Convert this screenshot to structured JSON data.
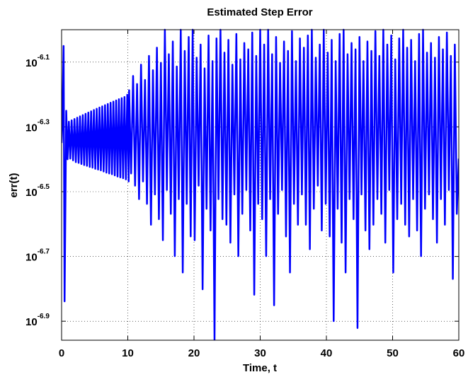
{
  "chart_data": {
    "type": "line",
    "title": "Estimated Step Error",
    "x_label": "Time, t",
    "y_label": "err(t)",
    "xlim": [
      0,
      60
    ],
    "xticks": [
      0,
      10,
      20,
      30,
      40,
      50,
      60
    ],
    "ylim": [
      1.1e-07,
      1e-06
    ],
    "yscale": "log",
    "yticks": [
      {
        "value": 1.259e-07,
        "label": "10",
        "exponent": "-6.9"
      },
      {
        "value": 1.995e-07,
        "label": "10",
        "exponent": "-6.7"
      },
      {
        "value": 3.162e-07,
        "label": "10",
        "exponent": "-6.5"
      },
      {
        "value": 5.012e-07,
        "label": "10",
        "exponent": "-6.3"
      },
      {
        "value": 7.943e-07,
        "label": "10",
        "exponent": "-6.1"
      }
    ],
    "grid": true,
    "x": [
      0,
      0.1,
      0.3,
      0.45,
      0.7,
      0.9,
      1.1,
      1.31,
      1.52,
      1.73,
      1.94,
      2.15,
      2.36,
      2.57,
      2.78,
      2.99,
      3.2,
      3.41,
      3.62,
      3.83,
      4.04,
      4.25,
      4.46,
      4.67,
      4.88,
      5.09,
      5.3,
      5.51,
      5.72,
      5.93,
      6.14,
      6.35,
      6.56,
      6.77,
      6.98,
      7.19,
      7.4,
      7.61,
      7.82,
      8.03,
      8.24,
      8.45,
      8.66,
      8.87,
      9.08,
      9.29,
      9.5,
      9.71,
      9.92,
      10.13,
      10.2,
      10.5,
      10.8,
      11.1,
      11.4,
      11.7,
      12.0,
      12.3,
      12.6,
      12.9,
      13.2,
      13.5,
      13.8,
      14.1,
      14.4,
      14.7,
      15.0,
      15.3,
      15.6,
      15.9,
      16.2,
      16.5,
      16.8,
      17.1,
      17.4,
      17.7,
      18.0,
      18.3,
      18.6,
      18.9,
      19.2,
      19.5,
      19.8,
      20.1,
      20.4,
      20.7,
      21.0,
      21.3,
      21.6,
      21.9,
      22.2,
      22.5,
      22.8,
      23.1,
      23.4,
      23.7,
      24.0,
      24.3,
      24.6,
      24.9,
      25.2,
      25.5,
      25.8,
      26.1,
      26.4,
      26.7,
      27.0,
      27.3,
      27.6,
      27.9,
      28.2,
      28.5,
      28.8,
      29.1,
      29.4,
      29.7,
      30.0,
      30.3,
      30.6,
      30.9,
      31.2,
      31.5,
      31.8,
      32.1,
      32.4,
      32.7,
      33.0,
      33.3,
      33.6,
      33.9,
      34.2,
      34.5,
      34.8,
      35.1,
      35.4,
      35.7,
      36.0,
      36.3,
      36.6,
      36.9,
      37.2,
      37.5,
      37.8,
      38.1,
      38.4,
      38.7,
      39.0,
      39.3,
      39.6,
      39.9,
      40.2,
      40.5,
      40.8,
      41.1,
      41.4,
      41.7,
      42.0,
      42.3,
      42.6,
      42.9,
      43.2,
      43.5,
      43.8,
      44.1,
      44.4,
      44.7,
      45.0,
      45.3,
      45.6,
      45.9,
      46.2,
      46.5,
      46.8,
      47.1,
      47.4,
      47.7,
      48.0,
      48.3,
      48.6,
      48.9,
      49.2,
      49.5,
      49.8,
      50.1,
      50.4,
      50.7,
      51.0,
      51.3,
      51.6,
      51.9,
      52.2,
      52.5,
      52.8,
      53.1,
      53.4,
      53.7,
      54.0,
      54.3,
      54.6,
      54.9,
      55.2,
      55.5,
      55.8,
      56.1,
      56.4,
      56.7,
      57.0,
      57.3,
      57.6,
      57.9,
      58.2,
      58.5,
      58.8,
      59.1,
      59.4,
      59.7,
      60
    ],
    "series": [
      {
        "name": "err",
        "color": "#0000ff",
        "values": [
          4.47e-07,
          5.01e-07,
          8.91e-07,
          1.45e-07,
          5.62e-07,
          3.98e-07,
          5.2e-07,
          4e-07,
          5.25e-07,
          3.95e-07,
          5.3e-07,
          3.9e-07,
          5.35e-07,
          3.88e-07,
          5.4e-07,
          3.85e-07,
          5.45e-07,
          3.82e-07,
          5.5e-07,
          3.8e-07,
          5.55e-07,
          3.77e-07,
          5.6e-07,
          3.75e-07,
          5.65e-07,
          3.72e-07,
          5.7e-07,
          3.7e-07,
          5.75e-07,
          3.68e-07,
          5.8e-07,
          3.65e-07,
          5.85e-07,
          3.62e-07,
          5.9e-07,
          3.6e-07,
          5.95e-07,
          3.58e-07,
          6e-07,
          3.55e-07,
          6.05e-07,
          3.52e-07,
          6.1e-07,
          3.5e-07,
          6.15e-07,
          3.48e-07,
          6.2e-07,
          3.45e-07,
          6.3e-07,
          3.4e-07,
          6.5e-07,
          3.6e-07,
          7.2e-07,
          3.3e-07,
          6.8e-07,
          3e-07,
          7.8e-07,
          3.4e-07,
          7e-07,
          2.9e-07,
          8.3e-07,
          2.5e-07,
          7.5e-07,
          3.1e-07,
          8.8e-07,
          2.6e-07,
          7.9e-07,
          2.24e-07,
          1e-06,
          3.2e-07,
          8.4e-07,
          2.7e-07,
          9.2e-07,
          2e-07,
          7.7e-07,
          3e-07,
          1e-06,
          1.78e-07,
          8.6e-07,
          2.9e-07,
          9.5e-07,
          2.3e-07,
          1e-06,
          2.24e-07,
          8.2e-07,
          3.3e-07,
          9e-07,
          1.58e-07,
          7.6e-07,
          2.8e-07,
          9.6e-07,
          2.4e-07,
          8e-07,
          1.1e-07,
          9.4e-07,
          3e-07,
          1e-06,
          2.6e-07,
          8.5e-07,
          2.5e-07,
          9.3e-07,
          2.2e-07,
          7.8e-07,
          3.1e-07,
          9.7e-07,
          2e-07,
          8.1e-07,
          2.7e-07,
          9.1e-07,
          3.2e-07,
          8.7e-07,
          2.4e-07,
          9.8e-07,
          1.52e-07,
          8.3e-07,
          2.9e-07,
          1e-06,
          2.6e-07,
          9e-07,
          2e-07,
          1e-06,
          3e-07,
          8.4e-07,
          1.41e-07,
          9.5e-07,
          2.7e-07,
          7.9e-07,
          3.2e-07,
          9.2e-07,
          2.3e-07,
          8.6e-07,
          1.78e-07,
          9.9e-07,
          2.9e-07,
          8e-07,
          2.5e-07,
          9.4e-07,
          3.1e-07,
          8.8e-07,
          2.5e-07,
          9.6e-07,
          2.1e-07,
          1e-06,
          2.8e-07,
          8.2e-07,
          3.3e-07,
          9e-07,
          2.4e-07,
          1e-06,
          2.9e-07,
          8.5e-07,
          2.3e-07,
          9.3e-07,
          1.26e-07,
          8e-07,
          2.8e-07,
          9.7e-07,
          2.2e-07,
          1e-06,
          1.78e-07,
          8.4e-07,
          3e-07,
          9.1e-07,
          2.6e-07,
          8.7e-07,
          1.2e-07,
          9.5e-07,
          3.1e-07,
          8e-07,
          2.4e-07,
          9.2e-07,
          2.1e-07,
          8.6e-07,
          2.5e-07,
          9.9e-07,
          3e-07,
          8.3e-07,
          2.7e-07,
          1e-06,
          2.2e-07,
          9e-07,
          3.2e-07,
          9.6e-07,
          1.78e-07,
          8.1e-07,
          2.6e-07,
          9.4e-07,
          2.9e-07,
          1e-06,
          2.5e-07,
          8.8e-07,
          2.3e-07,
          9.3e-07,
          3e-07,
          8e-07,
          2.4e-07,
          9.7e-07,
          2e-07,
          1e-06,
          2.8e-07,
          8.5e-07,
          3.1e-07,
          9.1e-07,
          2.6e-07,
          8.2e-07,
          2.2e-07,
          9.5e-07,
          3e-07,
          8.7e-07,
          2.5e-07,
          9.8e-07,
          3.2e-07,
          8.3e-07,
          1.7e-07,
          9e-07,
          2.7e-07,
          4e-07
        ]
      }
    ]
  }
}
